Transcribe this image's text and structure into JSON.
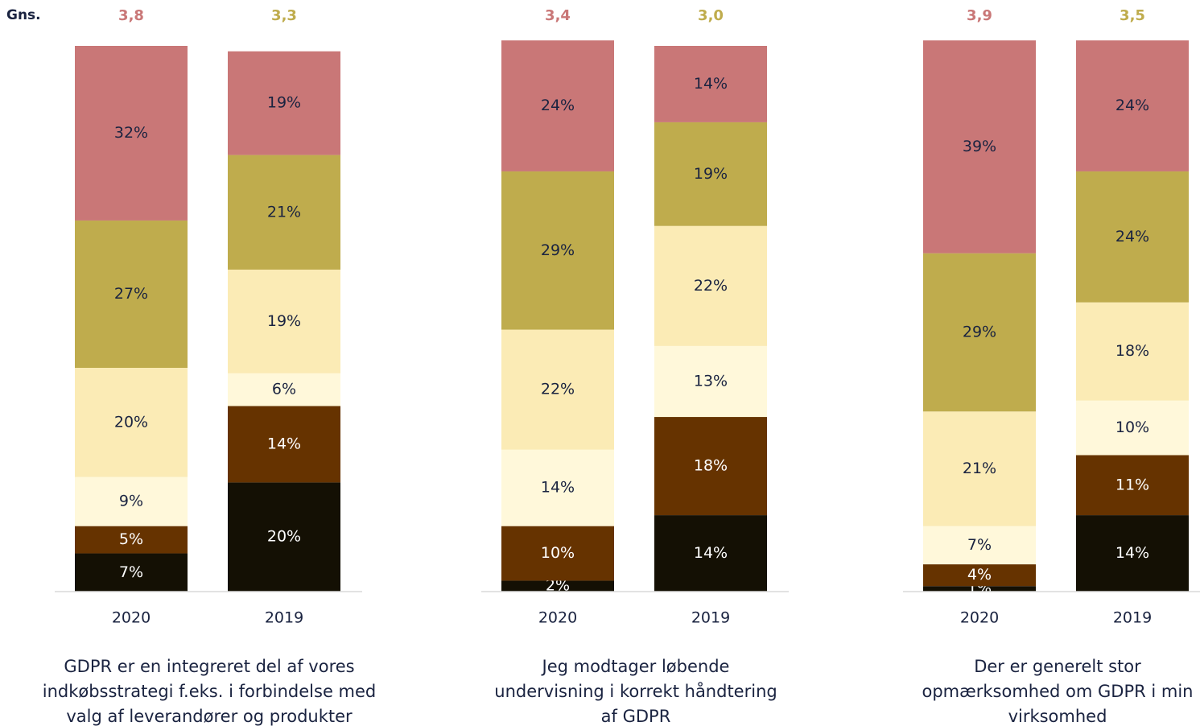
{
  "label": "Gns.",
  "chart_data": [
    {
      "type": "bar",
      "stacked": true,
      "title": [
        "GDPR er en integreret del af vores",
        "indkøbsstrategi f.eks. i forbindelse med",
        "valg af leverandører og produkter"
      ],
      "categories": [
        "2020",
        "2019"
      ],
      "ylim": [
        0,
        100
      ],
      "averages": [
        "3,8",
        "3,3"
      ],
      "average_colors": [
        "#c97777",
        "#bfac4d"
      ],
      "series": [
        {
          "color": "#141004",
          "values": [
            7,
            20
          ],
          "value_labels": [
            "7%",
            "20%"
          ]
        },
        {
          "color": "#663300",
          "values": [
            5,
            14
          ],
          "value_labels": [
            "5%",
            "14%"
          ]
        },
        {
          "color": "#fff8da",
          "values": [
            9,
            6
          ],
          "value_labels": [
            "9%",
            "6%"
          ]
        },
        {
          "color": "#fbebb5",
          "values": [
            20,
            19
          ],
          "value_labels": [
            "20%",
            "19%"
          ]
        },
        {
          "color": "#bfac4d",
          "values": [
            27,
            21
          ],
          "value_labels": [
            "27%",
            "21%"
          ]
        },
        {
          "color": "#c97777",
          "values": [
            32,
            19
          ],
          "value_labels": [
            "32%",
            "19%"
          ]
        }
      ]
    },
    {
      "type": "bar",
      "stacked": true,
      "title": [
        "Jeg modtager løbende",
        "undervisning i korrekt håndtering",
        "af GDPR"
      ],
      "categories": [
        "2020",
        "2019"
      ],
      "ylim": [
        0,
        100
      ],
      "averages": [
        "3,4",
        "3,0"
      ],
      "average_colors": [
        "#c97777",
        "#bfac4d"
      ],
      "series": [
        {
          "color": "#141004",
          "values": [
            2,
            14
          ],
          "value_labels": [
            "2%",
            "14%"
          ]
        },
        {
          "color": "#663300",
          "values": [
            10,
            18
          ],
          "value_labels": [
            "10%",
            "18%"
          ]
        },
        {
          "color": "#fff8da",
          "values": [
            14,
            13
          ],
          "value_labels": [
            "14%",
            "13%"
          ]
        },
        {
          "color": "#fbebb5",
          "values": [
            22,
            22
          ],
          "value_labels": [
            "22%",
            "22%"
          ]
        },
        {
          "color": "#bfac4d",
          "values": [
            29,
            19
          ],
          "value_labels": [
            "29%",
            "19%"
          ]
        },
        {
          "color": "#c97777",
          "values": [
            24,
            14
          ],
          "value_labels": [
            "24%",
            "14%"
          ]
        }
      ]
    },
    {
      "type": "bar",
      "stacked": true,
      "title": [
        "Der er generelt stor",
        "opmærksomhed om GDPR i min",
        "virksomhed"
      ],
      "categories": [
        "2020",
        "2019"
      ],
      "ylim": [
        0,
        100
      ],
      "averages": [
        "3,9",
        "3,5"
      ],
      "average_colors": [
        "#c97777",
        "#bfac4d"
      ],
      "series": [
        {
          "color": "#141004",
          "values": [
            1,
            14
          ],
          "value_labels": [
            "1%",
            "14%"
          ]
        },
        {
          "color": "#663300",
          "values": [
            4,
            11
          ],
          "value_labels": [
            "4%",
            "11%"
          ]
        },
        {
          "color": "#fff8da",
          "values": [
            7,
            10
          ],
          "value_labels": [
            "7%",
            "10%"
          ]
        },
        {
          "color": "#fbebb5",
          "values": [
            21,
            18
          ],
          "value_labels": [
            "21%",
            "18%"
          ]
        },
        {
          "color": "#bfac4d",
          "values": [
            29,
            24
          ],
          "value_labels": [
            "29%",
            "24%"
          ]
        },
        {
          "color": "#c97777",
          "values": [
            39,
            24
          ],
          "value_labels": [
            "39%",
            "24%"
          ]
        }
      ]
    }
  ]
}
